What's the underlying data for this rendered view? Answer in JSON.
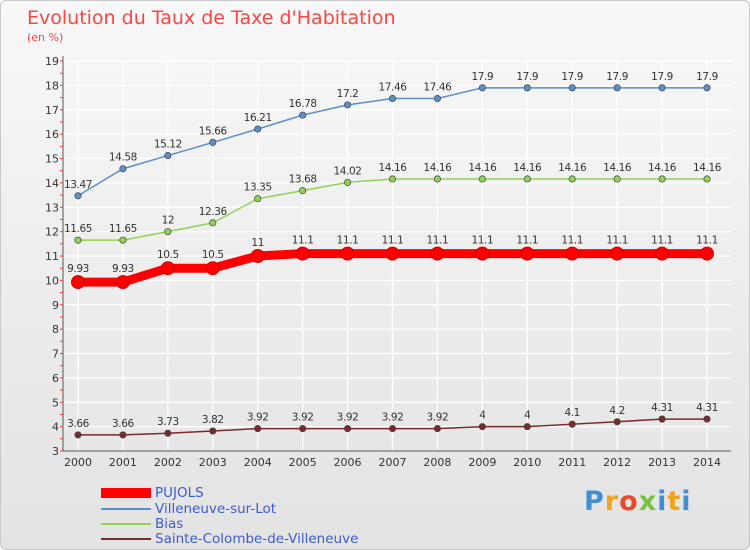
{
  "header": {
    "title": "Evolution du Taux de Taxe d'Habitation",
    "subtitle": "(en %)"
  },
  "logo": {
    "text": "Proxiti",
    "letter_colors": [
      "#3f8fd6",
      "#f2a21c",
      "#e9482a",
      "#7ac143",
      "#3f8fd6",
      "#f2a21c",
      "#3f8fd6"
    ]
  },
  "chart_data": {
    "type": "line",
    "title": "Evolution du Taux de Taxe d'Habitation",
    "subtitle": "(en %)",
    "x": [
      "2000",
      "2001",
      "2002",
      "2003",
      "2004",
      "2005",
      "2006",
      "2007",
      "2008",
      "2009",
      "2010",
      "2011",
      "2012",
      "2013",
      "2014"
    ],
    "yticks": [
      3,
      4,
      5,
      6,
      7,
      8,
      9,
      10,
      11,
      12,
      13,
      14,
      15,
      16,
      17,
      18,
      19
    ],
    "ylim": [
      3,
      19
    ],
    "grid": true,
    "legend_position": "bottom-left",
    "series": [
      {
        "name": "PUJOLS",
        "color": "#ff0000",
        "values": [
          9.93,
          9.93,
          10.5,
          10.5,
          11,
          11.1,
          11.1,
          11.1,
          11.1,
          11.1,
          11.1,
          11.1,
          11.1,
          11.1,
          11.1
        ],
        "labels": [
          "9.93",
          "9.93",
          "10.5",
          "10.5",
          "11",
          "11.1",
          "11.1",
          "11.1",
          "11.1",
          "11.1",
          "11.1",
          "11.1",
          "11.1",
          "11.1",
          "11.1"
        ]
      },
      {
        "name": "Villeneuve-sur-Lot",
        "color": "#5b8fc9",
        "values": [
          13.47,
          14.58,
          15.12,
          15.66,
          16.21,
          16.78,
          17.2,
          17.46,
          17.46,
          17.9,
          17.9,
          17.9,
          17.9,
          17.9,
          17.9
        ],
        "labels": [
          "13.47",
          "14.58",
          "15.12",
          "15.66",
          "16.21",
          "16.78",
          "17.2",
          "17.46",
          "17.46",
          "17.9",
          "17.9",
          "17.9",
          "17.9",
          "17.9",
          "17.9"
        ]
      },
      {
        "name": "Bias",
        "color": "#8fd356",
        "values": [
          11.65,
          11.65,
          12,
          12.36,
          13.35,
          13.68,
          14.02,
          14.16,
          14.16,
          14.16,
          14.16,
          14.16,
          14.16,
          14.16,
          14.16
        ],
        "labels": [
          "11.65",
          "11.65",
          "12",
          "12.36",
          "13.35",
          "13.68",
          "14.02",
          "14.16",
          "14.16",
          "14.16",
          "14.16",
          "14.16",
          "14.16",
          "14.16",
          "14.16"
        ]
      },
      {
        "name": "Sainte-Colombe-de-Villeneuve",
        "color": "#7a2a2a",
        "values": [
          3.66,
          3.66,
          3.73,
          3.82,
          3.92,
          3.92,
          3.92,
          3.92,
          3.92,
          4,
          4,
          4.1,
          4.2,
          4.31,
          4.31
        ],
        "labels": [
          "3.66",
          "3.66",
          "3.73",
          "3.82",
          "3.92",
          "3.92",
          "3.92",
          "3.92",
          "3.92",
          "4",
          "4",
          "4.1",
          "4.2",
          "4.31",
          "4.31"
        ]
      }
    ]
  }
}
